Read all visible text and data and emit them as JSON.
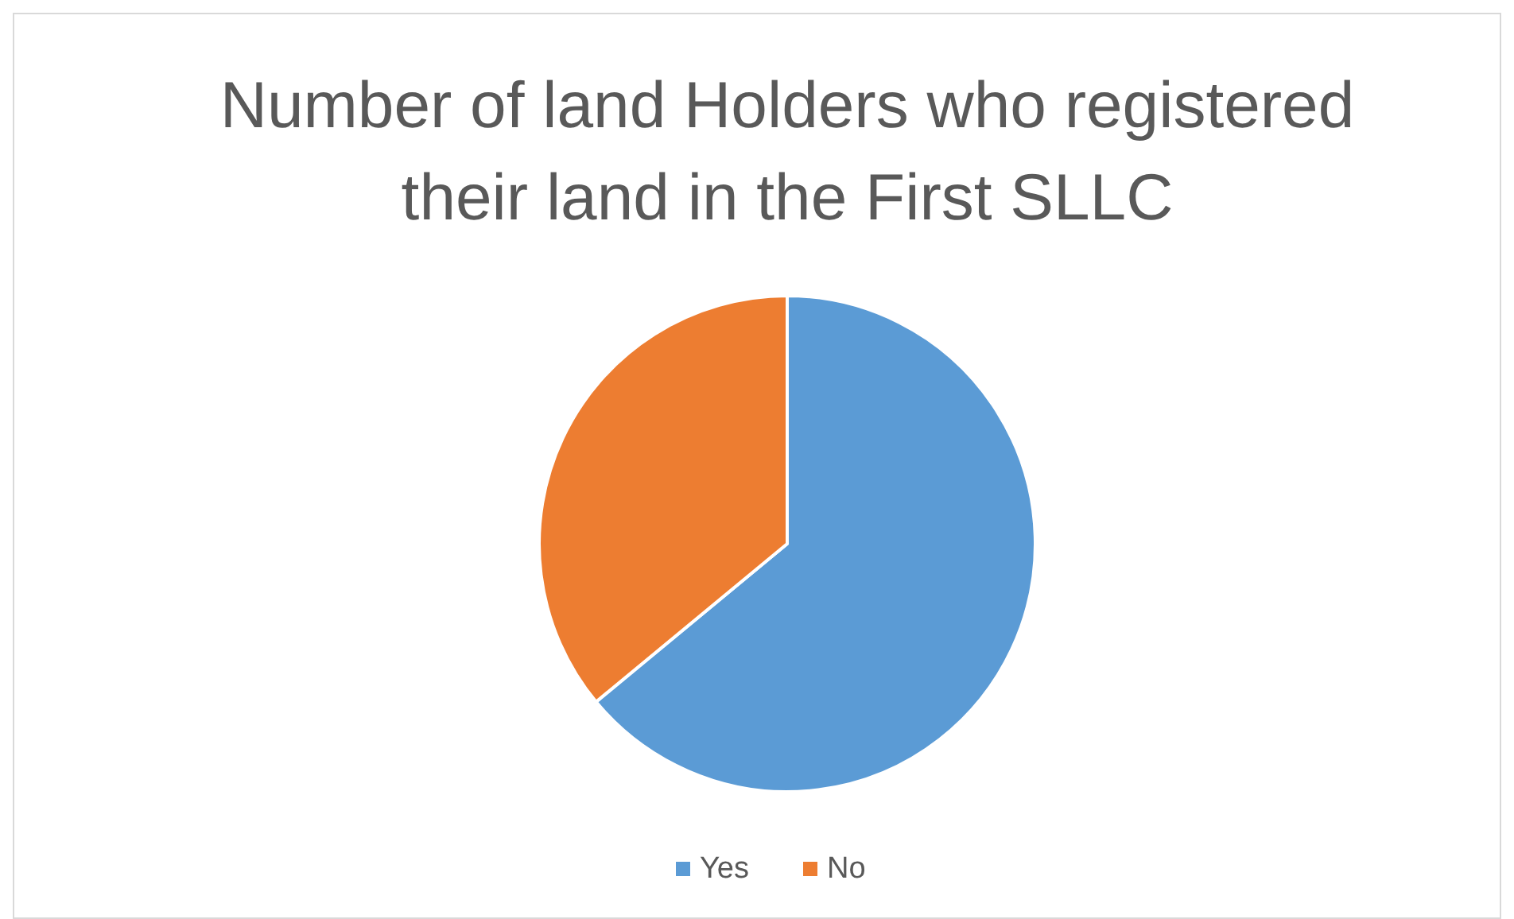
{
  "chart_data": {
    "type": "pie",
    "title": "Number of land Holders who registered their land in the First SLLC",
    "categories": [
      "Yes",
      "No"
    ],
    "values": [
      64,
      36
    ],
    "colors": [
      "#5b9bd5",
      "#ed7d31"
    ],
    "legend": "bottom"
  }
}
